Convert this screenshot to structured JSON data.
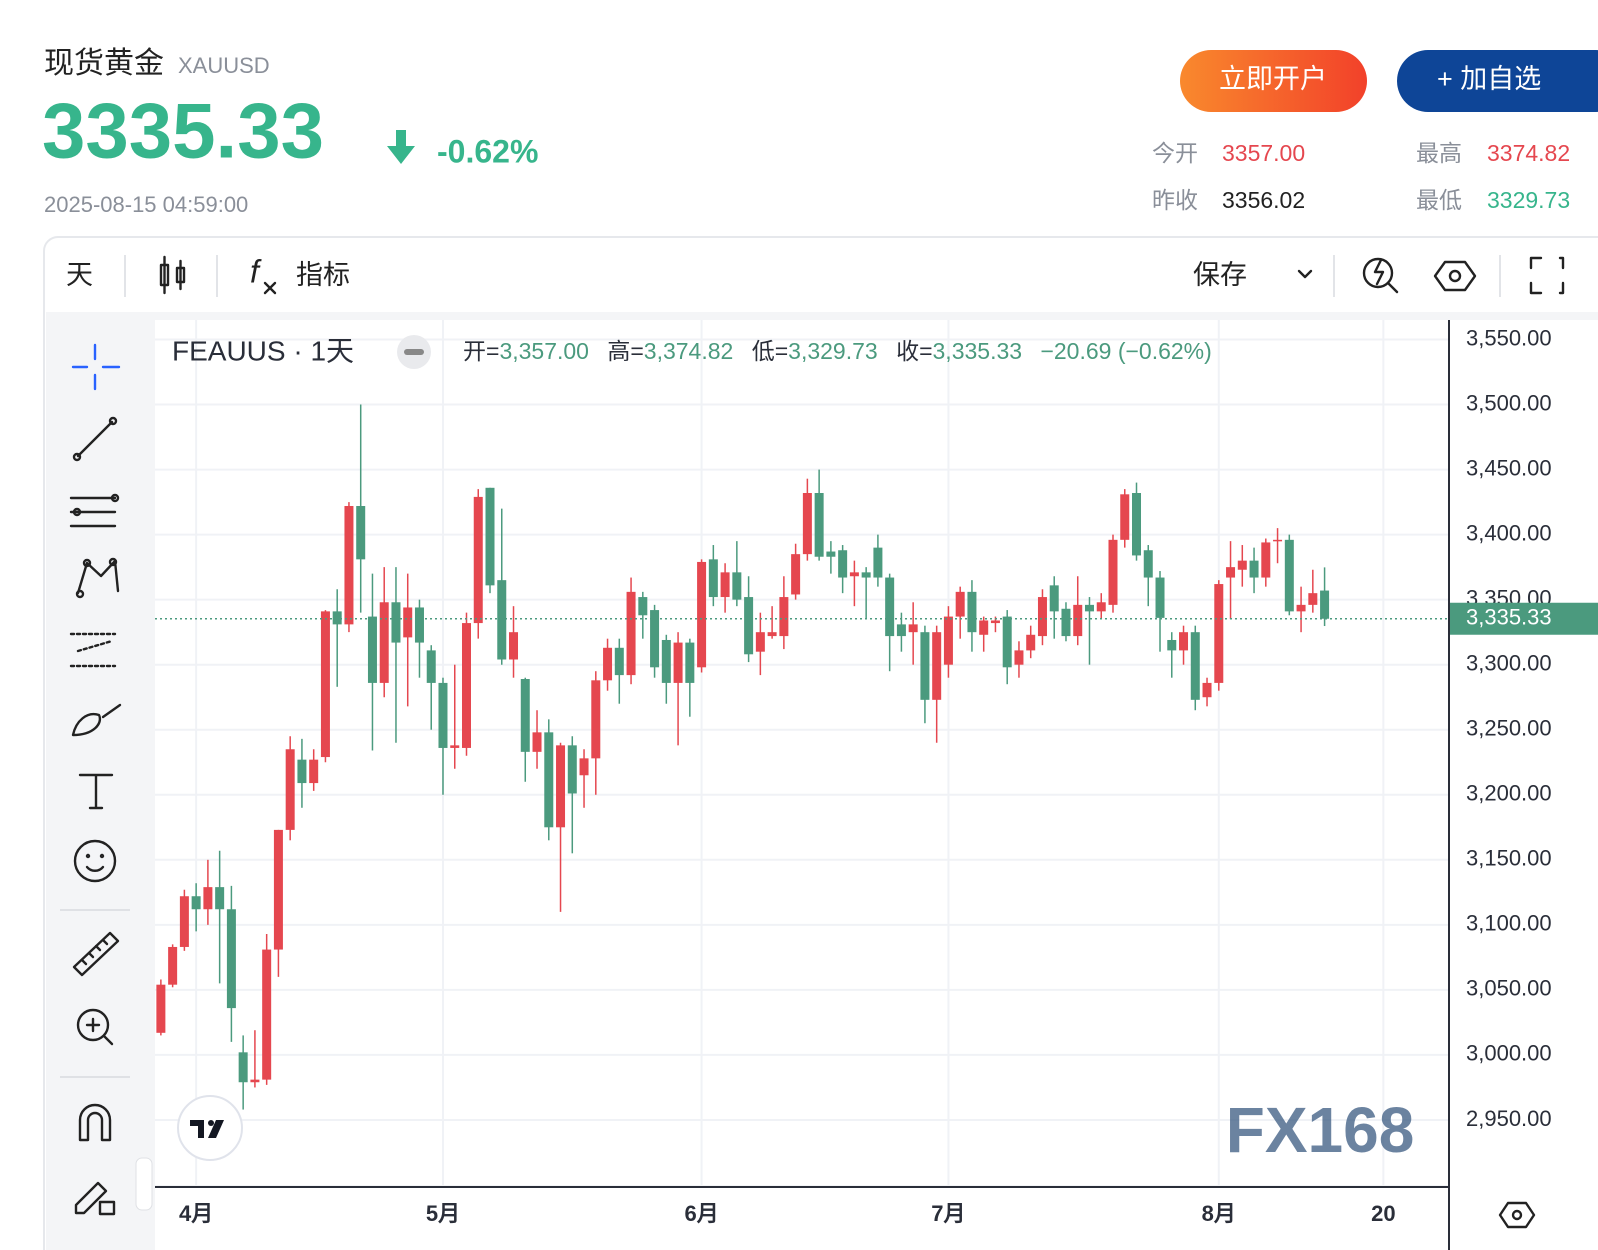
{
  "header": {
    "title": "现货黄金",
    "symbol": "XAUUSD",
    "price": "3335.33",
    "change": "-0.62%",
    "time": "2025-08-15 04:59:00",
    "open_account": "立即开户",
    "add_watch": "+ 加自选",
    "stats": [
      {
        "label": "今开",
        "value": "3357.00"
      },
      {
        "label": "最高",
        "value": "3374.82"
      },
      {
        "label": "昨收",
        "value": "3356.02"
      },
      {
        "label": "最低",
        "value": "3329.73"
      }
    ]
  },
  "toolbar": {
    "interval": "天",
    "fx": "f",
    "indicators": "指标",
    "save": "保存"
  },
  "chart_data": {
    "type": "candlestick",
    "title": "FEAUUS · 1天",
    "ohlc_legend": [
      {
        "label": "开=",
        "value": "3,357.00"
      },
      {
        "label": "高=",
        "value": "3,374.82"
      },
      {
        "label": "低=",
        "value": "3,329.73"
      },
      {
        "label": "收=",
        "value": "3,335.33"
      }
    ],
    "change": "−20.69 (−0.62%)",
    "up_color": "#e5474f",
    "down_color": "#4b9a7e",
    "open": [
      3017,
      3054,
      3083,
      3122,
      3112,
      3129,
      3112,
      3002,
      2979,
      2981,
      3081,
      3173,
      3227,
      3209,
      3229,
      3341,
      3331,
      3422,
      3337,
      3286,
      3348,
      3321,
      3344,
      3311,
      3286,
      3236,
      3236,
      3332,
      3436,
      3365,
      3304,
      3289,
      3233,
      3248,
      3175,
      3238,
      3215,
      3228,
      3288,
      3313,
      3292,
      3352,
      3342,
      3319,
      3286,
      3317,
      3298,
      3381,
      3352,
      3371,
      3352,
      3310,
      3322,
      3322,
      3354,
      3385,
      3432,
      3387,
      3388,
      3368,
      3371,
      3390,
      3367,
      3331,
      3325,
      3325,
      3273,
      3300,
      3337,
      3356,
      3323,
      3332,
      3337,
      3300,
      3311,
      3322,
      3361,
      3343,
      3322,
      3346,
      3341,
      3346,
      3396,
      3432,
      3388,
      3367,
      3319,
      3311,
      3325,
      3275,
      3286,
      3367,
      3373,
      3380,
      3367,
      3395,
      3396,
      3341,
      3346,
      3357
    ],
    "high": [
      3058,
      3085,
      3127,
      3132,
      3150,
      3157,
      3130,
      3015,
      3019,
      3093,
      3173,
      3245,
      3243,
      3235,
      3342,
      3358,
      3425,
      3500,
      3370,
      3375,
      3375,
      3370,
      3350,
      3315,
      3290,
      3300,
      3340,
      3435,
      3436,
      3420,
      3345,
      3290,
      3265,
      3258,
      3240,
      3245,
      3235,
      3295,
      3320,
      3320,
      3367,
      3356,
      3346,
      3323,
      3325,
      3320,
      3381,
      3392,
      3378,
      3395,
      3368,
      3340,
      3345,
      3368,
      3393,
      3443,
      3450,
      3395,
      3392,
      3380,
      3375,
      3400,
      3370,
      3340,
      3348,
      3330,
      3330,
      3345,
      3360,
      3365,
      3337,
      3337,
      3342,
      3318,
      3330,
      3358,
      3368,
      3348,
      3368,
      3352,
      3355,
      3400,
      3435,
      3440,
      3392,
      3372,
      3325,
      3330,
      3330,
      3290,
      3365,
      3395,
      3392,
      3390,
      3397,
      3405,
      3400,
      3360,
      3373,
      3374.82
    ],
    "low": [
      3015,
      3052,
      3080,
      3095,
      3100,
      3055,
      3010,
      2958,
      2975,
      2977,
      3060,
      3165,
      3190,
      3203,
      3225,
      3283,
      3325,
      3340,
      3234,
      3275,
      3240,
      3268,
      3290,
      3250,
      3200,
      3220,
      3230,
      3320,
      3355,
      3300,
      3290,
      3210,
      3220,
      3165,
      3110,
      3155,
      3190,
      3200,
      3280,
      3270,
      3285,
      3320,
      3290,
      3270,
      3238,
      3260,
      3294,
      3345,
      3340,
      3345,
      3302,
      3292,
      3320,
      3312,
      3350,
      3380,
      3380,
      3370,
      3355,
      3345,
      3335,
      3360,
      3295,
      3310,
      3300,
      3255,
      3240,
      3290,
      3320,
      3310,
      3310,
      3325,
      3285,
      3290,
      3305,
      3315,
      3320,
      3318,
      3315,
      3300,
      3335,
      3340,
      3390,
      3380,
      3345,
      3310,
      3290,
      3300,
      3265,
      3268,
      3280,
      3335,
      3360,
      3355,
      3360,
      3378,
      3338,
      3325,
      3340,
      3329.73
    ],
    "close": [
      3054,
      3083,
      3122,
      3112,
      3129,
      3112,
      3036,
      2979,
      2981,
      3081,
      3173,
      3235,
      3209,
      3227,
      3341,
      3331,
      3422,
      3381,
      3286,
      3348,
      3317,
      3344,
      3317,
      3286,
      3236,
      3238,
      3332,
      3429,
      3361,
      3304,
      3325,
      3233,
      3248,
      3175,
      3238,
      3201,
      3228,
      3288,
      3313,
      3292,
      3356,
      3338,
      3298,
      3286,
      3317,
      3286,
      3379,
      3352,
      3371,
      3350,
      3308,
      3325,
      3325,
      3352,
      3385,
      3432,
      3383,
      3383,
      3367,
      3371,
      3367,
      3367,
      3322,
      3322,
      3331,
      3273,
      3325,
      3337,
      3356,
      3325,
      3334,
      3334,
      3298,
      3311,
      3323,
      3352,
      3341,
      3322,
      3346,
      3341,
      3348,
      3396,
      3431,
      3384,
      3367,
      3336,
      3311,
      3325,
      3273,
      3286,
      3362,
      3375,
      3380,
      3367,
      3394,
      3396,
      3341,
      3346,
      3355,
      3335.33
    ],
    "xlim": [
      -0.5,
      109.5
    ],
    "xticks": [
      {
        "value": 3,
        "label": "4月"
      },
      {
        "value": 24,
        "label": "5月"
      },
      {
        "value": 46,
        "label": "6月"
      },
      {
        "value": 67,
        "label": "7月"
      },
      {
        "value": 90,
        "label": "8月"
      },
      {
        "value": 104,
        "label": "20"
      }
    ],
    "ylim": [
      2900,
      3565
    ],
    "yticks": [
      {
        "value": 3550,
        "label": "3,550.00"
      },
      {
        "value": 3500,
        "label": "3,500.00"
      },
      {
        "value": 3450,
        "label": "3,450.00"
      },
      {
        "value": 3400,
        "label": "3,400.00"
      },
      {
        "value": 3350,
        "label": "3,350.00"
      },
      {
        "value": 3300,
        "label": "3,300.00"
      },
      {
        "value": 3250,
        "label": "3,250.00"
      },
      {
        "value": 3200,
        "label": "3,200.00"
      },
      {
        "value": 3150,
        "label": "3,150.00"
      },
      {
        "value": 3100,
        "label": "3,100.00"
      },
      {
        "value": 3050,
        "label": "3,050.00"
      },
      {
        "value": 3000,
        "label": "3,000.00"
      },
      {
        "value": 2950,
        "label": "2,950.00"
      }
    ],
    "price_line": {
      "value": 3335.33,
      "label": "3,335.33"
    },
    "grid": true,
    "watermark": "FX168"
  }
}
